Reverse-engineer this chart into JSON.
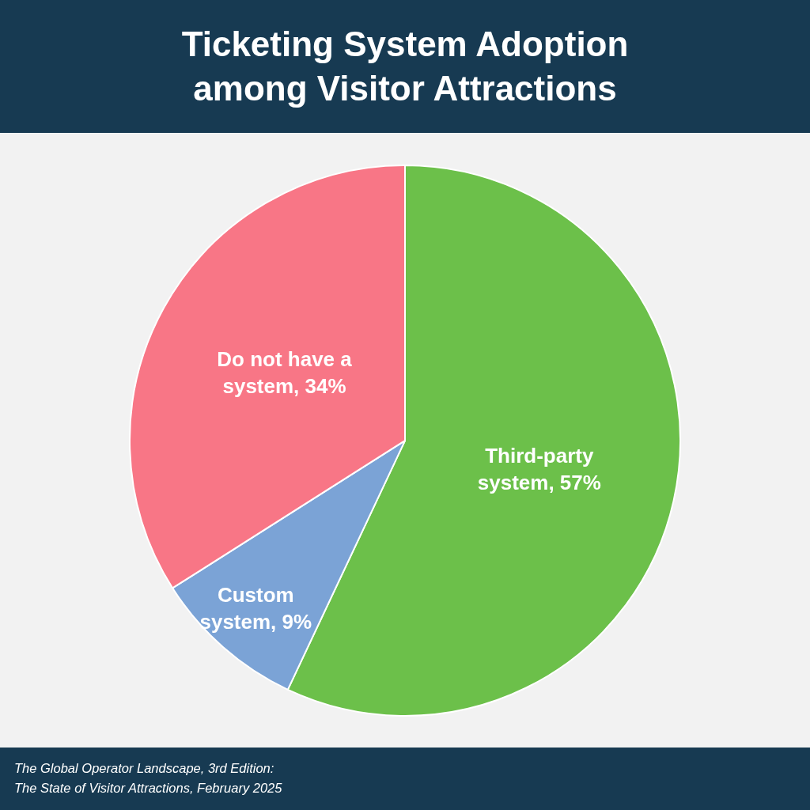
{
  "chart_data": {
    "type": "pie",
    "title": "Ticketing System Adoption among Visitor Attractions",
    "categories": [
      "Third-party system",
      "Custom system",
      "Do not have a system"
    ],
    "values": [
      57,
      9,
      34
    ],
    "colors": [
      "#6cc04a",
      "#7ba3d6",
      "#f87686"
    ],
    "value_labels": [
      "57%",
      "9%",
      "34%"
    ],
    "legend": false,
    "annotations": [
      "The Global Operator Landscape, 3rd Edition:",
      "The State of Visitor Attractions, February 2025"
    ]
  }
}
